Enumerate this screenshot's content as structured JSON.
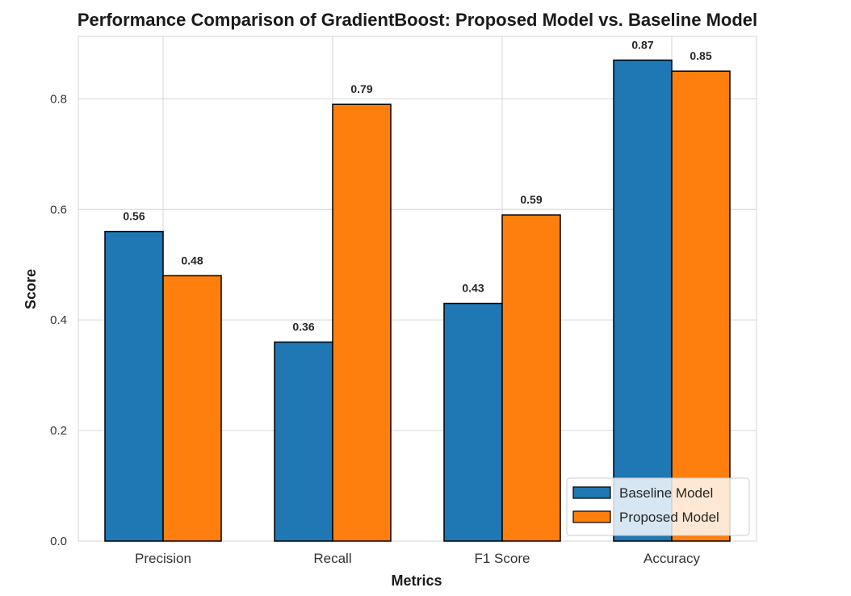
{
  "chart_data": {
    "type": "bar",
    "title": "Performance Comparison of GradientBoost: Proposed Model vs. Baseline Model",
    "xlabel": "Metrics",
    "ylabel": "Score",
    "categories": [
      "Precision",
      "Recall",
      "F1 Score",
      "Accuracy"
    ],
    "series": [
      {
        "name": "Baseline Model",
        "values": [
          0.56,
          0.36,
          0.43,
          0.87
        ],
        "labels": [
          "0.56",
          "0.36",
          "0.43",
          "0.87"
        ],
        "color": "#1f77b4"
      },
      {
        "name": "Proposed Model",
        "values": [
          0.48,
          0.79,
          0.59,
          0.85
        ],
        "labels": [
          "0.48",
          "0.79",
          "0.59",
          "0.85"
        ],
        "color": "#ff7f0e"
      }
    ],
    "ylim": [
      0,
      0.913
    ],
    "yticks": [
      0.0,
      0.2,
      0.4,
      0.6,
      0.8
    ],
    "ytick_labels": [
      "0.0",
      "0.2",
      "0.4",
      "0.6",
      "0.8"
    ],
    "grid": true,
    "legend_position": "lower-right",
    "bar_edge_color": "#000000",
    "grid_color": "#d6d6d6",
    "axes_edge_color": "#d6d6d6"
  }
}
